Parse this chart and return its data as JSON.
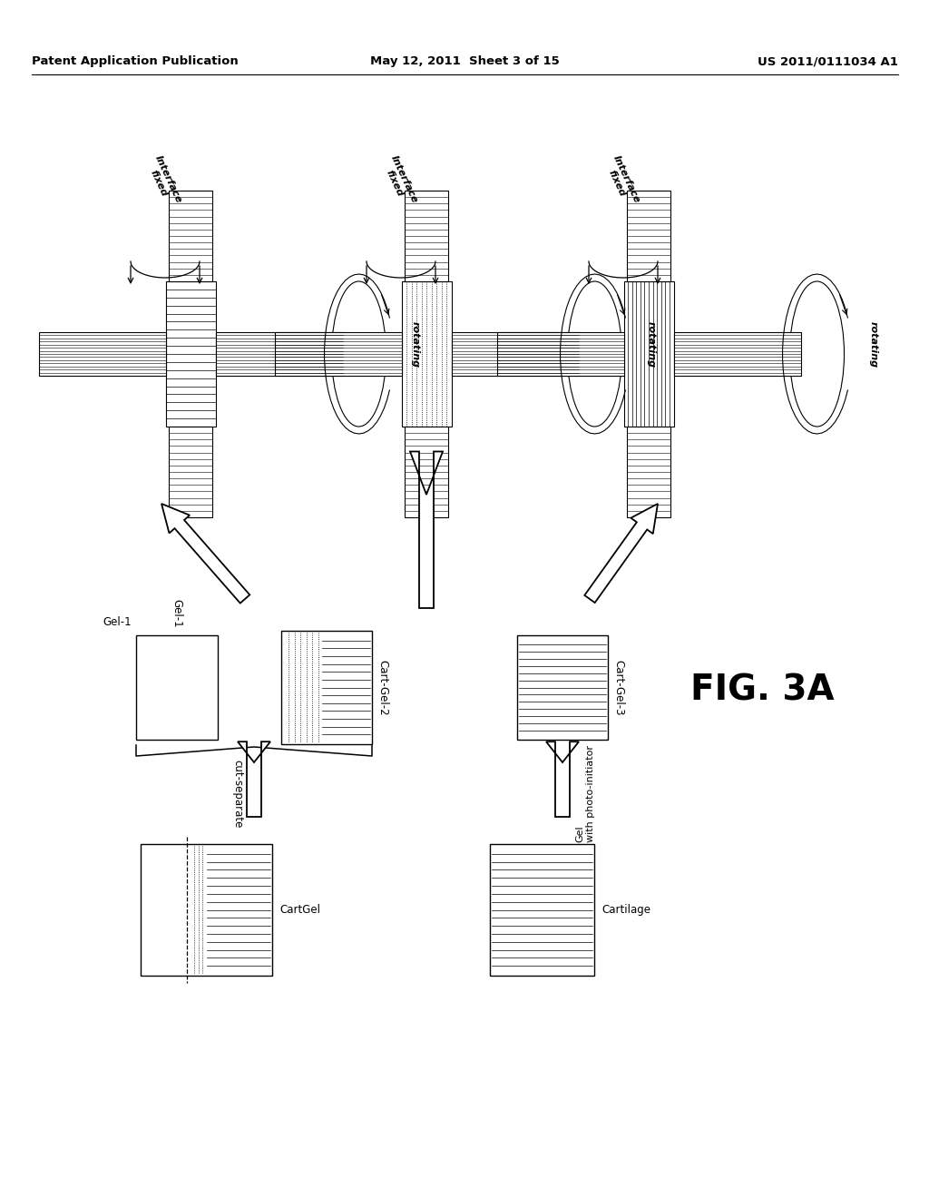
{
  "header_left": "Patent Application Publication",
  "header_mid": "May 12, 2011  Sheet 3 of 15",
  "header_right": "US 2011/0111034 A1",
  "fig_label": "FIG. 3A",
  "bg_color": "#ffffff"
}
